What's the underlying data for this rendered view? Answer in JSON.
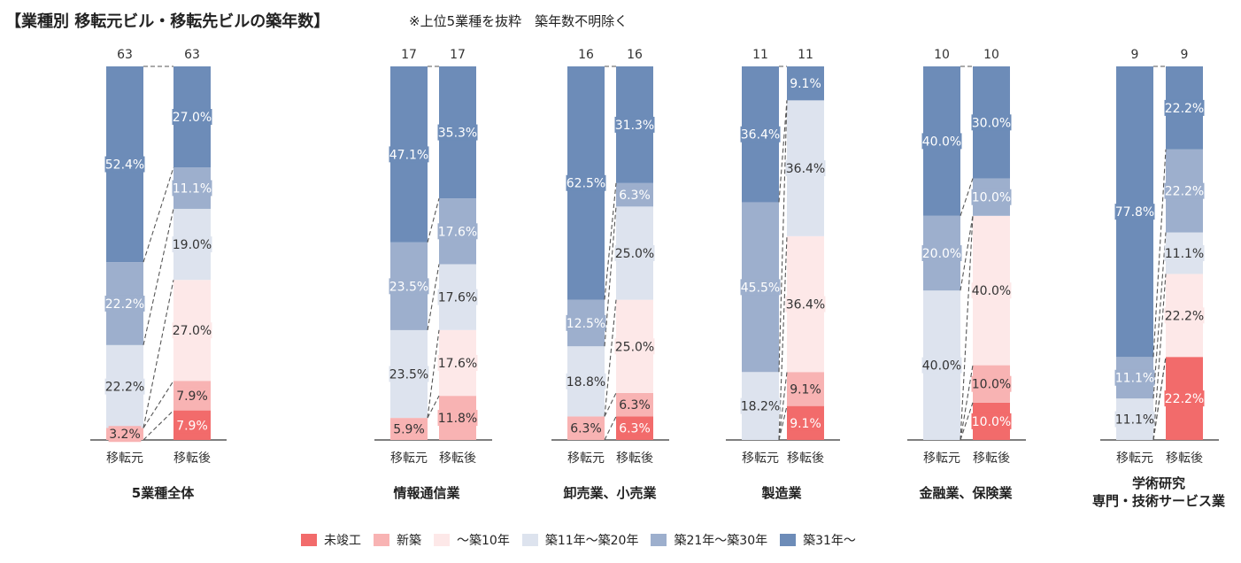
{
  "title": "【業種別 移転元ビル・移転先ビルの築年数】",
  "note": "※上位5業種を抜粋　築年数不明除く",
  "chart_data": {
    "type": "bar",
    "stacked": "100%",
    "bar_labels": [
      "移転元",
      "移転後"
    ],
    "series": [
      {
        "name": "未竣工",
        "color": "#f26b6b",
        "label_bg": "#f26b6b",
        "label_color": "#ffffff"
      },
      {
        "name": "新築",
        "color": "#f8b3b3",
        "label_bg": "#f8b3b3",
        "label_color": "#333333"
      },
      {
        "name": "～築10年",
        "color": "#fde8e8",
        "label_bg": "#fde8e8",
        "label_color": "#333333"
      },
      {
        "name": "築11年～築20年",
        "color": "#dde3ee",
        "label_bg": "#dde3ee",
        "label_color": "#333333"
      },
      {
        "name": "築21年～築30年",
        "color": "#9dafcd",
        "label_bg": "#9dafcd",
        "label_color": "#ffffff"
      },
      {
        "name": "築31年～",
        "color": "#6d8cb8",
        "label_bg": "#6d8cb8",
        "label_color": "#ffffff"
      }
    ],
    "groups": [
      {
        "name": "5業種全体",
        "before": {
          "total": 63,
          "values": [
            0,
            3.2,
            0,
            22.2,
            22.2,
            52.4
          ],
          "labels": [
            "",
            "3.2%",
            "",
            "22.2%",
            "22.2%",
            "52.4%"
          ]
        },
        "after": {
          "total": 63,
          "values": [
            7.9,
            7.9,
            27.0,
            19.0,
            11.1,
            27.0
          ],
          "labels": [
            "7.9%",
            "7.9%",
            "27.0%",
            "19.0%",
            "11.1%",
            "27.0%"
          ]
        }
      },
      {
        "name": "情報通信業",
        "before": {
          "total": 17,
          "values": [
            0,
            5.9,
            0,
            23.5,
            23.5,
            47.1
          ],
          "labels": [
            "",
            "5.9%",
            "",
            "23.5%",
            "23.5%",
            "47.1%"
          ]
        },
        "after": {
          "total": 17,
          "values": [
            0,
            11.8,
            17.6,
            17.6,
            17.6,
            35.3
          ],
          "labels": [
            "",
            "11.8%",
            "17.6%",
            "17.6%",
            "17.6%",
            "35.3%"
          ]
        }
      },
      {
        "name": "卸売業、小売業",
        "before": {
          "total": 16,
          "values": [
            0,
            6.3,
            0,
            18.8,
            12.5,
            62.5
          ],
          "labels": [
            "",
            "6.3%",
            "",
            "18.8%",
            "12.5%",
            "62.5%"
          ]
        },
        "after": {
          "total": 16,
          "values": [
            6.3,
            6.3,
            25.0,
            25.0,
            6.3,
            31.3
          ],
          "labels": [
            "6.3%",
            "6.3%",
            "25.0%",
            "25.0%",
            "6.3%",
            "31.3%"
          ]
        }
      },
      {
        "name": "製造業",
        "before": {
          "total": 11,
          "values": [
            0,
            0,
            0,
            18.2,
            45.5,
            36.4
          ],
          "labels": [
            "",
            "",
            "",
            "18.2%",
            "45.5%",
            "36.4%"
          ]
        },
        "after": {
          "total": 11,
          "values": [
            9.1,
            9.1,
            36.4,
            36.4,
            0,
            9.1
          ],
          "labels": [
            "9.1%",
            "9.1%",
            "36.4%",
            "36.4%",
            "",
            "9.1%"
          ]
        }
      },
      {
        "name": "金融業、保険業",
        "before": {
          "total": 10,
          "values": [
            0,
            0,
            0,
            40.0,
            20.0,
            40.0
          ],
          "labels": [
            "",
            "",
            "",
            "40.0%",
            "20.0%",
            "40.0%"
          ]
        },
        "after": {
          "total": 10,
          "values": [
            10.0,
            10.0,
            40.0,
            0,
            10.0,
            30.0
          ],
          "labels": [
            "10.0%",
            "10.0%",
            "40.0%",
            "",
            "10.0%",
            "30.0%"
          ]
        }
      },
      {
        "name": "学術研究\n専門・技術サービス業",
        "before": {
          "total": 9,
          "values": [
            0,
            0,
            0,
            11.1,
            11.1,
            77.8
          ],
          "labels": [
            "",
            "",
            "",
            "11.1%",
            "11.1%",
            "77.8%"
          ]
        },
        "after": {
          "total": 9,
          "values": [
            22.2,
            0,
            22.2,
            11.1,
            22.2,
            22.2
          ],
          "labels": [
            "22.2%",
            "",
            "22.2%",
            "11.1%",
            "22.2%",
            "22.2%"
          ]
        }
      }
    ]
  }
}
